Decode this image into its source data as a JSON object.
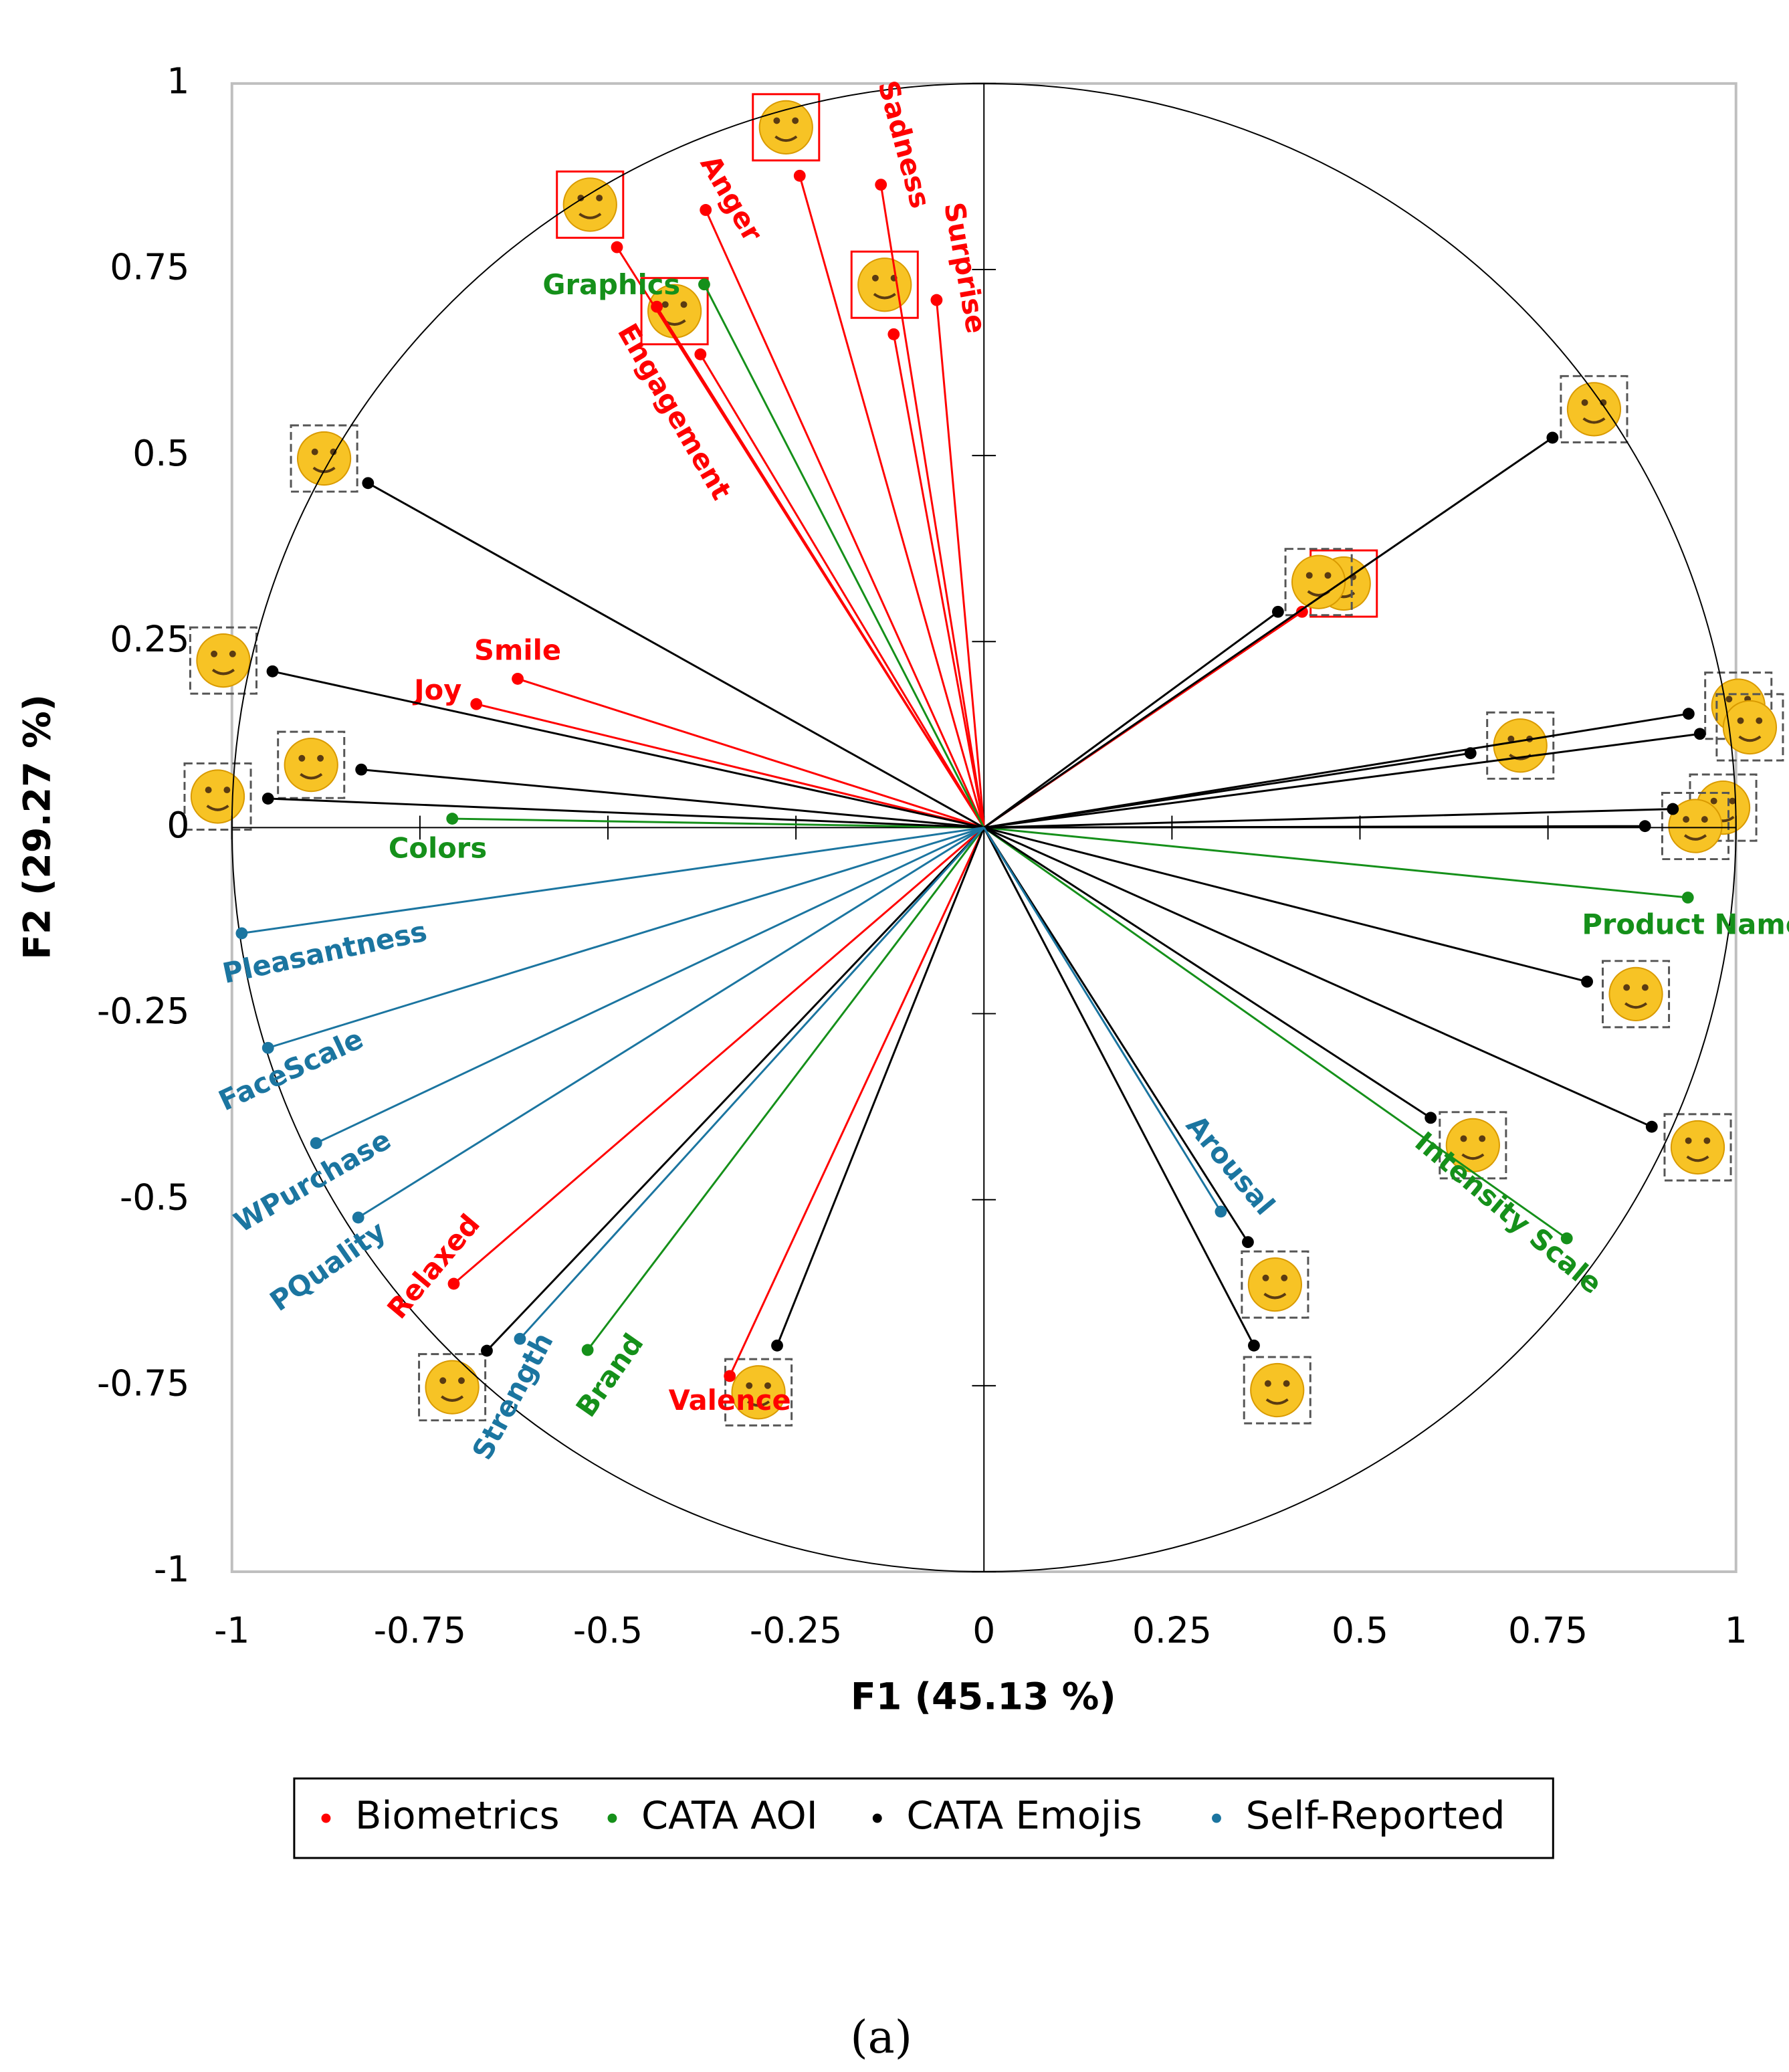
{
  "chart_data": {
    "type": "biplot",
    "xlabel": "F1 (45.13 %)",
    "ylabel": "F2 (29.27 %)",
    "xlim": [
      -1,
      1
    ],
    "ylim": [
      -1,
      1
    ],
    "xticks": [
      -1,
      -0.75,
      -0.5,
      -0.25,
      0,
      0.25,
      0.5,
      0.75,
      1
    ],
    "yticks": [
      -1,
      -0.75,
      -0.5,
      -0.25,
      0,
      0.25,
      0.5,
      0.75,
      1
    ],
    "series": [
      {
        "name": "Biometrics",
        "color": "#ff0000",
        "x": [
          -0.137,
          -0.063,
          -0.37,
          -0.435,
          -0.62,
          -0.675,
          -0.705,
          -0.338,
          -0.245,
          -0.488,
          -0.377,
          -0.12,
          0.423
        ],
        "values": [
          0.864,
          0.709,
          0.83,
          0.7,
          0.2,
          0.166,
          -0.613,
          -0.737,
          0.876,
          0.78,
          0.636,
          0.663,
          0.29
        ],
        "labels": [
          "Sadness",
          "Surprise",
          "Anger",
          "Engagement",
          "Smile",
          "Joy",
          "Relaxed",
          "Valence",
          null,
          null,
          null,
          null,
          null
        ]
      },
      {
        "name": "CATA AOI",
        "color": "#15901a",
        "x": [
          -0.372,
          -0.707,
          0.936,
          0.775,
          -0.527
        ],
        "values": [
          0.73,
          0.012,
          -0.094,
          -0.552,
          -0.702
        ],
        "labels": [
          "Graphics",
          "Colors",
          "Product Name",
          "Intensity Scale",
          "Brand"
        ]
      },
      {
        "name": "CATA Emojis",
        "color": "#000000",
        "x": [
          -0.819,
          -0.946,
          -0.828,
          -0.952,
          0.756,
          0.391,
          0.647,
          0.937,
          0.952,
          0.916,
          0.879,
          0.802,
          0.888,
          0.594,
          0.351,
          0.359,
          -0.275,
          -0.661
        ],
        "values": [
          0.463,
          0.21,
          0.078,
          0.039,
          0.524,
          0.29,
          0.1,
          0.153,
          0.126,
          0.025,
          0.002,
          -0.207,
          -0.402,
          -0.39,
          -0.557,
          -0.696,
          -0.696,
          -0.703
        ],
        "labels": [
          null,
          null,
          null,
          null,
          null,
          null,
          null,
          null,
          null,
          null,
          null,
          null,
          null,
          null,
          null,
          null,
          null,
          null
        ]
      },
      {
        "name": "Self-Reported",
        "color": "#1b75a0",
        "x": [
          -0.987,
          -0.952,
          -0.888,
          -0.832,
          -0.617,
          0.315
        ],
        "values": [
          -0.142,
          -0.296,
          -0.424,
          -0.524,
          -0.687,
          -0.516
        ],
        "labels": [
          "Pleasantness",
          "FaceScale",
          "WPurchase",
          "PQuality",
          "Strength",
          "Arousal"
        ]
      }
    ]
  },
  "caption": "(a)"
}
